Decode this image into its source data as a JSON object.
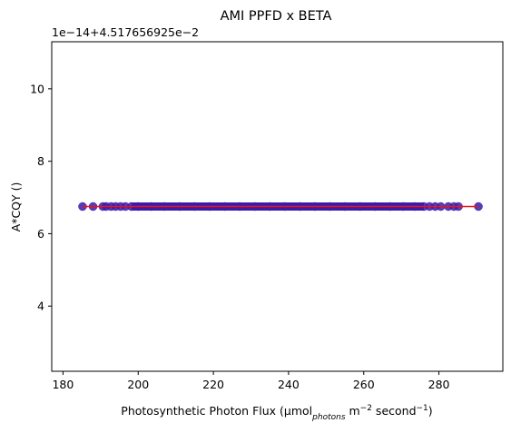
{
  "chart_data": {
    "type": "scatter",
    "title": "AMI PPFD x BETA",
    "xlabel": {
      "prefix": "Photosynthetic Photon Flux (μmol",
      "sub": "photons",
      "mid": " m",
      "sup1": "−2",
      "mid2": " second",
      "sup2": "−1",
      "suffix": ")"
    },
    "ylabel": "A*CQY ()",
    "y_offset_label": "1e−14+4.517656925e−2",
    "x_ticks": [
      "180",
      "200",
      "220",
      "240",
      "260",
      "280"
    ],
    "y_ticks": [
      "4",
      "6",
      "8",
      "10"
    ],
    "xlim": [
      177,
      297
    ],
    "ylim": [
      2.2,
      11.3
    ],
    "point_color": "#3a1aa8",
    "line_color": "#e8141e",
    "series": [
      {
        "x": [
          185.2,
          188.0,
          190.6,
          191.5,
          192.8,
          194.0,
          195.3,
          196.6,
          198.2,
          200.0,
          203.5,
          207.0,
          211.0,
          215.0,
          219.0,
          223.0,
          227.0,
          231.0,
          235.0,
          239.0,
          243.0,
          247.0,
          251.0,
          255.0,
          259.0,
          263.0,
          267.0,
          270.5,
          273.5,
          276.0,
          277.5,
          279.0,
          280.5,
          282.5,
          284.0,
          285.2,
          290.5
        ],
        "y": [
          6.75,
          6.75,
          6.75,
          6.75,
          6.75,
          6.75,
          6.75,
          6.75,
          6.75,
          6.75,
          6.75,
          6.75,
          6.75,
          6.75,
          6.75,
          6.75,
          6.75,
          6.75,
          6.75,
          6.75,
          6.75,
          6.75,
          6.75,
          6.75,
          6.75,
          6.75,
          6.75,
          6.75,
          6.75,
          6.75,
          6.75,
          6.75,
          6.75,
          6.75,
          6.75,
          6.75,
          6.75
        ]
      }
    ],
    "fit_line": {
      "x": [
        185.2,
        290.5
      ],
      "y": [
        6.75,
        6.75
      ]
    }
  }
}
